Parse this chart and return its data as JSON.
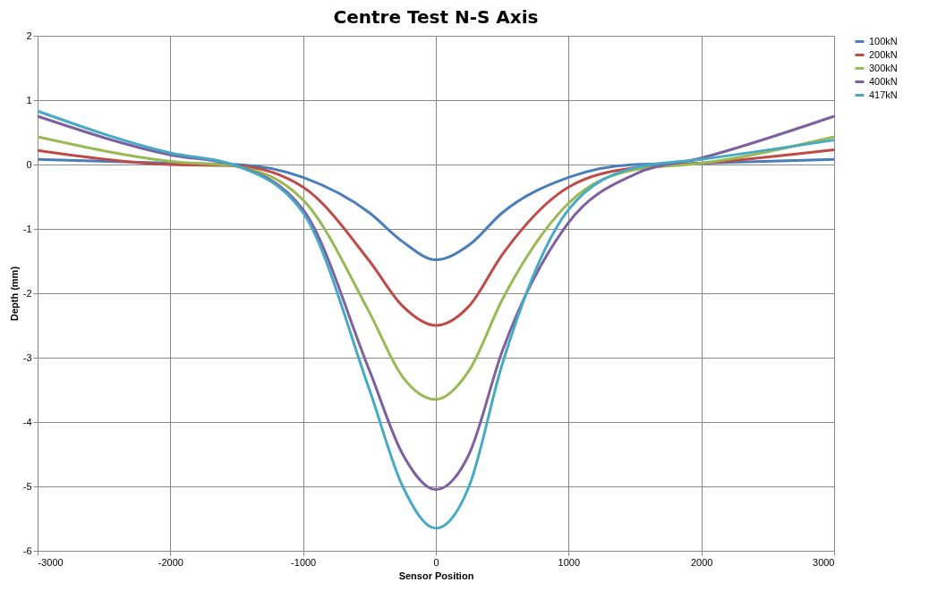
{
  "chart_data": {
    "type": "line",
    "title": "Centre Test N-S Axis",
    "xlabel": "Sensor Position",
    "ylabel": "Depth (mm)",
    "x": [
      -3000,
      -2000,
      -1500,
      -1000,
      -500,
      -250,
      0,
      250,
      500,
      1000,
      1500,
      2000,
      3000
    ],
    "series": [
      {
        "name": "100kN",
        "color": "#4a7ebb",
        "values": [
          0.08,
          0.02,
          0,
          -0.2,
          -0.75,
          -1.2,
          -1.48,
          -1.25,
          -0.75,
          -0.2,
          0,
          0.02,
          0.08
        ]
      },
      {
        "name": "200kN",
        "color": "#be4b48",
        "values": [
          0.22,
          0,
          -0.02,
          -0.35,
          -1.5,
          -2.2,
          -2.5,
          -2.2,
          -1.4,
          -0.35,
          -0.05,
          0.02,
          0.23
        ]
      },
      {
        "name": "300kN",
        "color": "#98b954",
        "values": [
          0.43,
          0.05,
          -0.03,
          -0.55,
          -2.3,
          -3.3,
          -3.65,
          -3.2,
          -2.1,
          -0.6,
          -0.08,
          0.02,
          0.43
        ]
      },
      {
        "name": "400kN",
        "color": "#7d60a0",
        "values": [
          0.75,
          0.15,
          -0.02,
          -0.7,
          -3.2,
          -4.5,
          -5.05,
          -4.5,
          -2.9,
          -0.9,
          -0.15,
          0.1,
          0.75
        ]
      },
      {
        "name": "417kN",
        "color": "#46aac5",
        "values": [
          0.83,
          0.18,
          -0.02,
          -0.75,
          -3.5,
          -5.0,
          -5.65,
          -5.0,
          -3.1,
          -0.7,
          -0.05,
          0.08,
          0.38
        ]
      }
    ],
    "xlim": [
      -3000,
      3000
    ],
    "xticks": [
      -3000,
      -2000,
      -1000,
      0,
      1000,
      2000,
      3000
    ],
    "ylim": [
      -6,
      2
    ],
    "yticks": [
      -6,
      -5,
      -4,
      -3,
      -2,
      -1,
      0,
      1,
      2
    ],
    "grid": true,
    "legend": "right",
    "marker": "none",
    "line_style": "solid"
  }
}
